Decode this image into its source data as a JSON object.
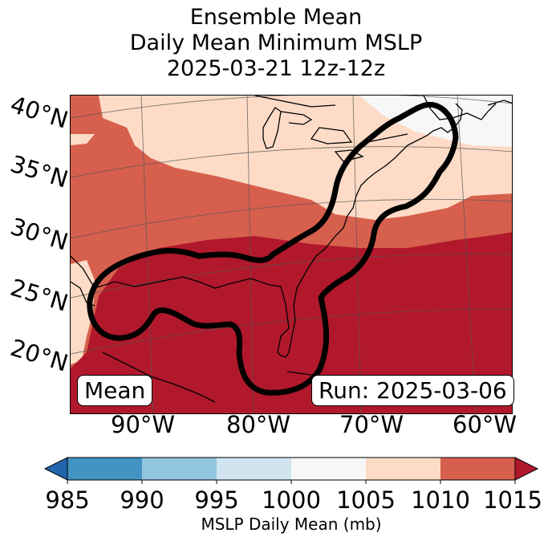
{
  "title": {
    "line1": "Ensemble Mean",
    "line2": "Daily Mean Minimum MSLP",
    "line3": "2025-03-21 12z-12z"
  },
  "map": {
    "latitude_labels": [
      "40°N",
      "35°N",
      "30°N",
      "25°N",
      "20°N"
    ],
    "longitude_labels": [
      "90°W",
      "80°W",
      "70°W",
      "60°W"
    ],
    "label_left": "Mean",
    "label_right": "Run: 2025-03-06"
  },
  "colorbar": {
    "ticks": [
      "985",
      "990",
      "995",
      "1000",
      "1005",
      "1010",
      "1015"
    ],
    "label": "MSLP Daily Mean (mb)",
    "colors": {
      "extend_low": "#2166ac",
      "985_990": "#4393c3",
      "990_995": "#92c5de",
      "995_1000": "#d1e5f0",
      "1000_1005": "#f7f7f7",
      "1005_1010": "#fddbc7",
      "1010_1015": "#d6604d",
      "extend_high": "#b2182b"
    }
  }
}
